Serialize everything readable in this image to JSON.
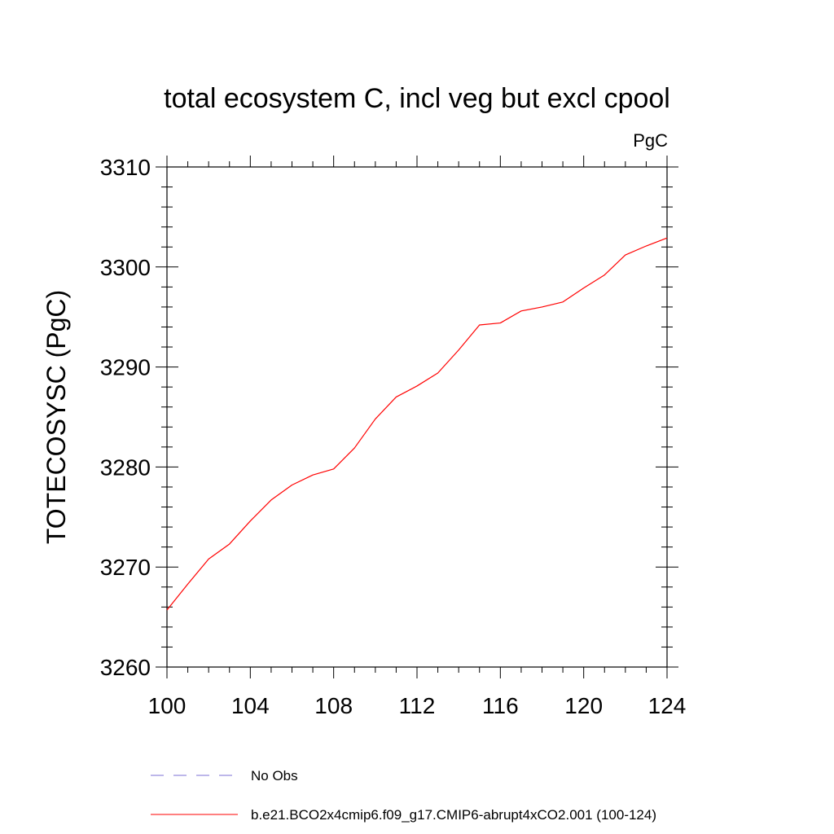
{
  "chart_data": {
    "type": "line",
    "title": "total ecosystem C, incl veg but excl cpool",
    "units": "PgC",
    "xlabel": "",
    "ylabel": "TOTECOSYSC  (PgC)",
    "xlim": [
      100,
      124
    ],
    "ylim": [
      3260,
      3310
    ],
    "x_ticks": [
      100,
      104,
      108,
      112,
      116,
      120,
      124
    ],
    "y_ticks": [
      3260,
      3270,
      3280,
      3290,
      3300,
      3310
    ],
    "x_minor_step": 1,
    "y_minor_step": 2,
    "grid": false,
    "legend_position": "bottom",
    "legend": [
      {
        "name": "No Obs",
        "color": "#7b6fd6",
        "style": "dashed"
      },
      {
        "name": "b.e21.BCO2x4cmip6.f09_g17.CMIP6-abrupt4xCO2.001 (100-124)",
        "color": "#ff0000",
        "style": "solid"
      }
    ],
    "series": [
      {
        "name": "b.e21.BCO2x4cmip6.f09_g17.CMIP6-abrupt4xCO2.001 (100-124)",
        "color": "#ff0000",
        "x": [
          100,
          101,
          102,
          103,
          104,
          105,
          106,
          107,
          108,
          109,
          110,
          111,
          112,
          113,
          114,
          115,
          116,
          117,
          118,
          119,
          120,
          121,
          122,
          123,
          124
        ],
        "values": [
          3265.7,
          3268.3,
          3270.8,
          3272.3,
          3274.6,
          3276.7,
          3278.2,
          3279.2,
          3279.8,
          3281.9,
          3284.8,
          3287.0,
          3288.1,
          3289.4,
          3291.7,
          3294.2,
          3294.4,
          3295.6,
          3296.0,
          3296.5,
          3297.9,
          3299.2,
          3301.2,
          3302.1,
          3302.9
        ]
      }
    ]
  }
}
